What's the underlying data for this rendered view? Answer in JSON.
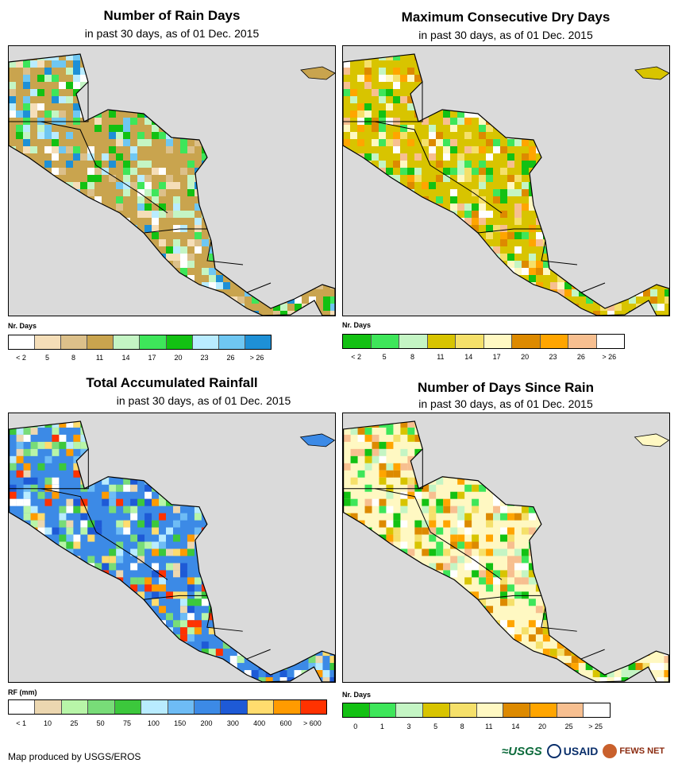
{
  "panels": [
    {
      "title": "Number of Rain Days",
      "subtitle": "in past 30 days, as of 01 Dec. 2015",
      "legend_title": "Nr. Days",
      "legend_labels": [
        "< 2",
        "5",
        "8",
        "11",
        "14",
        "17",
        "20",
        "23",
        "26",
        "> 26"
      ],
      "legend_colors": [
        "#ffffff",
        "#f5deb8",
        "#dcc08a",
        "#c9a44e",
        "#c4f5c4",
        "#3ee65a",
        "#12c112",
        "#b9ecff",
        "#6fc7f2",
        "#1e90d6"
      ],
      "dominant": "#c9a44e"
    },
    {
      "title": "Maximum Consecutive Dry Days",
      "subtitle": "in past 30 days, as of 01 Dec. 2015",
      "legend_title": "Nr. Days",
      "legend_labels": [
        "< 2",
        "5",
        "8",
        "11",
        "14",
        "17",
        "20",
        "23",
        "26",
        "> 26"
      ],
      "legend_colors": [
        "#13c113",
        "#3ee65a",
        "#c4f5c4",
        "#d8c400",
        "#f5e06a",
        "#fff8c2",
        "#dd8a00",
        "#ffa500",
        "#f7bf90",
        "#ffffff"
      ],
      "dominant": "#d8c400"
    },
    {
      "title": "Total Accumulated Rainfall",
      "subtitle": "in past 30 days, as of 01 Dec. 2015",
      "legend_title": "RF (mm)",
      "legend_labels": [
        "< 1",
        "10",
        "25",
        "50",
        "75",
        "100",
        "150",
        "200",
        "300",
        "400",
        "600",
        "> 600"
      ],
      "legend_colors": [
        "#ffffff",
        "#ecd7b0",
        "#b8f5a8",
        "#78dc78",
        "#3cc83c",
        "#b9ecff",
        "#6ebcf5",
        "#3c8ae6",
        "#1e5ad6",
        "#ffdc6e",
        "#ff9b00",
        "#ff3200"
      ],
      "dominant": "#3c8ae6"
    },
    {
      "title": "Number of Days Since Rain",
      "subtitle": "in past 30 days, as of 01 Dec. 2015",
      "legend_title": "Nr. Days",
      "legend_labels": [
        "0",
        "1",
        "3",
        "5",
        "8",
        "11",
        "14",
        "20",
        "25",
        "> 25"
      ],
      "legend_colors": [
        "#13c113",
        "#3ee65a",
        "#c4f5c4",
        "#d8c400",
        "#f5e06a",
        "#fff8c2",
        "#dd8a00",
        "#ffa500",
        "#f7bf90",
        "#ffffff"
      ],
      "dominant": "#fff8c2"
    }
  ],
  "footer": "Map produced by USGS/EROS",
  "logos": {
    "usgs": "≈USGS",
    "usaid": "USAID",
    "fews": "FEWS NET"
  }
}
